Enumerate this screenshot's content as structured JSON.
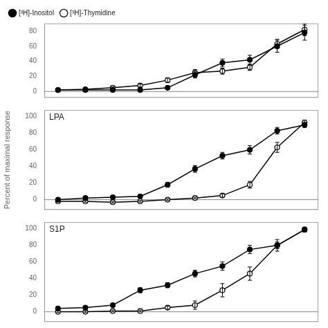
{
  "chart_data": [
    {
      "type": "line",
      "x": [
        1,
        2,
        3,
        4,
        5,
        6,
        7,
        8,
        9,
        10
      ],
      "xlim": [
        0.5,
        10.5
      ],
      "ylim": [
        -8,
        90
      ],
      "yticks": [
        0,
        20,
        40,
        60,
        80
      ],
      "tick_labels": "y",
      "grid": false,
      "legend": "upper left",
      "reference_line": 0,
      "series": [
        {
          "name": "[³H]-Inositol",
          "color": "#000000",
          "marker": "circle",
          "line_style": "solid",
          "values": [
            2,
            2,
            2,
            2,
            5,
            22,
            38,
            42,
            60,
            78
          ],
          "errors": [
            1,
            1,
            1,
            1,
            2,
            4,
            5,
            6,
            8,
            10
          ]
        },
        {
          "name": "[³H]-Thymidine",
          "color": "#000000",
          "marker": "circle_open",
          "line_style": "solid",
          "values": [
            2,
            3,
            5,
            8,
            15,
            25,
            27,
            32,
            63,
            82
          ],
          "errors": [
            1,
            1,
            1,
            2,
            3,
            4,
            4,
            4,
            6,
            8
          ]
        }
      ]
    },
    {
      "type": "line",
      "annotation": "LPA",
      "ylabel": "Percent of maximal response",
      "x": [
        1,
        2,
        3,
        4,
        5,
        6,
        7,
        8,
        9,
        10
      ],
      "xlim": [
        0.5,
        10.5
      ],
      "ylim": [
        -12,
        108
      ],
      "yticks": [
        0,
        20,
        40,
        60,
        80,
        100
      ],
      "tick_labels": "y",
      "grid": false,
      "reference_line": 0,
      "series": [
        {
          "name": "[³H]-Inositol",
          "color": "#000000",
          "marker": "circle",
          "line_style": "solid",
          "values": [
            0,
            2,
            3,
            4,
            18,
            37,
            53,
            60,
            83,
            90
          ],
          "errors": [
            1,
            1,
            1,
            1,
            3,
            4,
            4,
            5,
            4,
            3
          ]
        },
        {
          "name": "[³H]-Thymidine",
          "color": "#000000",
          "marker": "circle_open",
          "line_style": "solid",
          "values": [
            -2,
            -2,
            -3,
            -2,
            0,
            2,
            5,
            18,
            63,
            93
          ],
          "errors": [
            1,
            1,
            1,
            1,
            1,
            1,
            2,
            4,
            6,
            3
          ]
        }
      ]
    },
    {
      "type": "line",
      "annotation": "S1P",
      "x": [
        1,
        2,
        3,
        4,
        5,
        6,
        7,
        8,
        9,
        10
      ],
      "xlim": [
        0.5,
        10.5
      ],
      "ylim": [
        -12,
        108
      ],
      "yticks": [
        0,
        20,
        40,
        60,
        80,
        100
      ],
      "tick_labels": "y",
      "grid": false,
      "reference_line": 0,
      "series": [
        {
          "name": "[³H]-Inositol",
          "color": "#000000",
          "marker": "circle",
          "line_style": "solid",
          "values": [
            4,
            5,
            8,
            26,
            32,
            46,
            55,
            75,
            80,
            99
          ],
          "errors": [
            1,
            1,
            2,
            3,
            3,
            4,
            5,
            5,
            4,
            2
          ]
        },
        {
          "name": "[³H]-Thymidine",
          "color": "#000000",
          "marker": "circle_open",
          "line_style": "solid",
          "values": [
            0,
            0,
            1,
            1,
            5,
            8,
            26,
            46,
            80,
            99
          ],
          "errors": [
            1,
            1,
            1,
            1,
            2,
            5,
            8,
            8,
            7,
            3
          ]
        }
      ]
    }
  ]
}
